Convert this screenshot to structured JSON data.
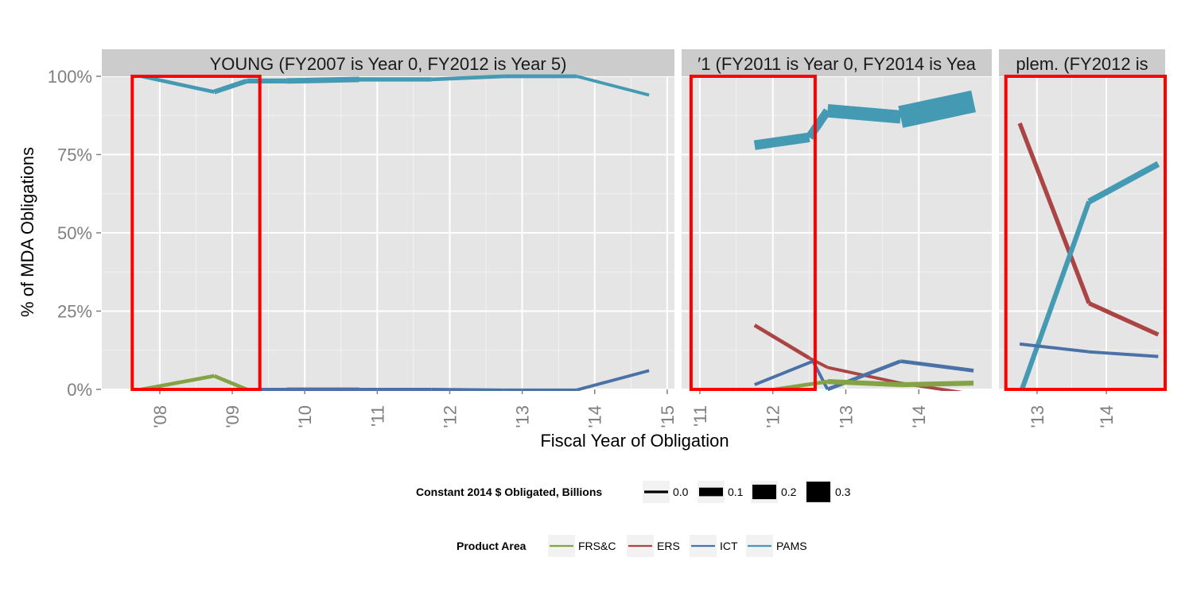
{
  "chart_data": {
    "type": "line",
    "ylabel": "% of  MDA  Obligations",
    "xlabel": "Fiscal Year of Obligation",
    "ylim": [
      0,
      1
    ],
    "y_ticks": [
      "0%",
      "25%",
      "50%",
      "75%",
      "100%"
    ],
    "y_tick_values": [
      0,
      0.25,
      0.5,
      0.75,
      1.0
    ],
    "colors": {
      "FRS&C": "#84a346",
      "ERS": "#ab4545",
      "ICT": "#4a72a6",
      "PAMS": "#4499b3",
      "highlight": "#ff0000"
    },
    "panels": [
      {
        "title": "YOUNG (FY2007 is Year 0, FY2012 is Year 5)",
        "x_range": [
          2007.2,
          2015.1
        ],
        "x_ticks": [
          "'08",
          "'09",
          "'10",
          "'11",
          "'12",
          "'13",
          "'14",
          "'15"
        ],
        "x_tick_values": [
          2008,
          2009,
          2010,
          2011,
          2012,
          2013,
          2014,
          2015
        ],
        "highlight": {
          "x": [
            2007.62,
            2009.38
          ],
          "y": [
            0,
            1
          ]
        },
        "series": [
          {
            "name": "PAMS",
            "points": [
              [
                2007.75,
                1.0,
                0.02
              ],
              [
                2008.75,
                0.95,
                0.02
              ],
              [
                2009.2,
                0.985,
                0.04
              ],
              [
                2009.75,
                0.985,
                0.04
              ],
              [
                2010.75,
                0.99,
                0.05
              ],
              [
                2011.75,
                0.99,
                0.03
              ],
              [
                2012.75,
                1.0,
                0.02
              ],
              [
                2013.75,
                1.0,
                0.02
              ],
              [
                2014.75,
                0.94,
                0.01
              ]
            ]
          },
          {
            "name": "FRS&C",
            "points": [
              [
                2007.75,
                0.0,
                0.02
              ],
              [
                2008.75,
                0.043,
                0.02
              ],
              [
                2009.2,
                0.0,
                0.02
              ]
            ]
          },
          {
            "name": "ERS",
            "points": [
              [
                2009.75,
                0.0,
                0.02
              ],
              [
                2010.75,
                0.0,
                0.02
              ]
            ]
          },
          {
            "name": "ICT",
            "points": [
              [
                2009.2,
                0.0,
                0.01
              ],
              [
                2010.75,
                0.0,
                0.01
              ],
              [
                2011.75,
                0.0,
                0.01
              ],
              [
                2012.75,
                -0.002,
                0.01
              ],
              [
                2013.75,
                -0.002,
                0.01
              ],
              [
                2014.75,
                0.06,
                0.01
              ]
            ]
          }
        ]
      },
      {
        "title": "′1 (FY2011 is Year 0, FY2014 is Yea",
        "x_range": [
          2010.75,
          2015.0
        ],
        "x_ticks": [
          "'11",
          "'12",
          "'13",
          "'14"
        ],
        "x_tick_values": [
          2011,
          2012,
          2013,
          2014
        ],
        "highlight": {
          "x": [
            2010.88,
            2012.58
          ],
          "y": [
            0,
            1
          ]
        },
        "series": [
          {
            "name": "PAMS",
            "points": [
              [
                2011.75,
                0.78,
                0.1
              ],
              [
                2012.5,
                0.805,
                0.12
              ],
              [
                2012.75,
                0.89,
                0.1
              ],
              [
                2013.75,
                0.87,
                0.18
              ],
              [
                2014.75,
                0.92,
                0.33
              ]
            ]
          },
          {
            "name": "ERS",
            "points": [
              [
                2011.75,
                0.205,
                0.02
              ],
              [
                2012.5,
                0.1,
                0.02
              ],
              [
                2012.75,
                0.07,
                0.01
              ],
              [
                2013.75,
                0.02,
                0.01
              ],
              [
                2014.6,
                -0.01,
                0.01
              ]
            ]
          },
          {
            "name": "ICT",
            "points": [
              [
                2011.75,
                0.015,
                0.01
              ],
              [
                2012.55,
                0.09,
                0.01
              ],
              [
                2012.75,
                0.0,
                0.01
              ],
              [
                2013.75,
                0.09,
                0.02
              ],
              [
                2014.75,
                0.06,
                0.02
              ]
            ]
          },
          {
            "name": "FRS&C",
            "points": [
              [
                2011.75,
                -0.01,
                0.01
              ],
              [
                2012.75,
                0.025,
                0.02
              ],
              [
                2013.75,
                0.015,
                0.04
              ],
              [
                2014.75,
                0.02,
                0.04
              ]
            ]
          }
        ]
      },
      {
        "title": "plem. (FY2012 is",
        "x_range": [
          2012.45,
          2014.85
        ],
        "x_ticks": [
          "'13",
          "'14"
        ],
        "x_tick_values": [
          2013,
          2014
        ],
        "highlight": {
          "x": [
            2012.55,
            2014.85
          ],
          "y": [
            0,
            1
          ]
        },
        "series": [
          {
            "name": "ERS",
            "points": [
              [
                2012.75,
                0.85,
                0.01
              ],
              [
                2013.75,
                0.275,
                0.03
              ],
              [
                2014.75,
                0.175,
                0.03
              ]
            ]
          },
          {
            "name": "PAMS",
            "points": [
              [
                2012.75,
                -0.02,
                0.01
              ],
              [
                2013.75,
                0.6,
                0.04
              ],
              [
                2014.75,
                0.72,
                0.06
              ]
            ]
          },
          {
            "name": "ICT",
            "points": [
              [
                2012.75,
                0.145,
                0.01
              ],
              [
                2013.75,
                0.12,
                0.01
              ],
              [
                2014.75,
                0.105,
                0.01
              ]
            ]
          }
        ]
      }
    ],
    "legend_size": {
      "title": "Constant 2014 $ Obligated, Billions",
      "entries": [
        {
          "label": "0.0",
          "value": 0.0
        },
        {
          "label": "0.1",
          "value": 0.1
        },
        {
          "label": "0.2",
          "value": 0.2
        },
        {
          "label": "0.3",
          "value": 0.3
        }
      ]
    },
    "legend_color": {
      "title": "Product Area",
      "entries": [
        {
          "label": "FRS&C"
        },
        {
          "label": "ERS"
        },
        {
          "label": "ICT"
        },
        {
          "label": "PAMS"
        }
      ]
    }
  }
}
